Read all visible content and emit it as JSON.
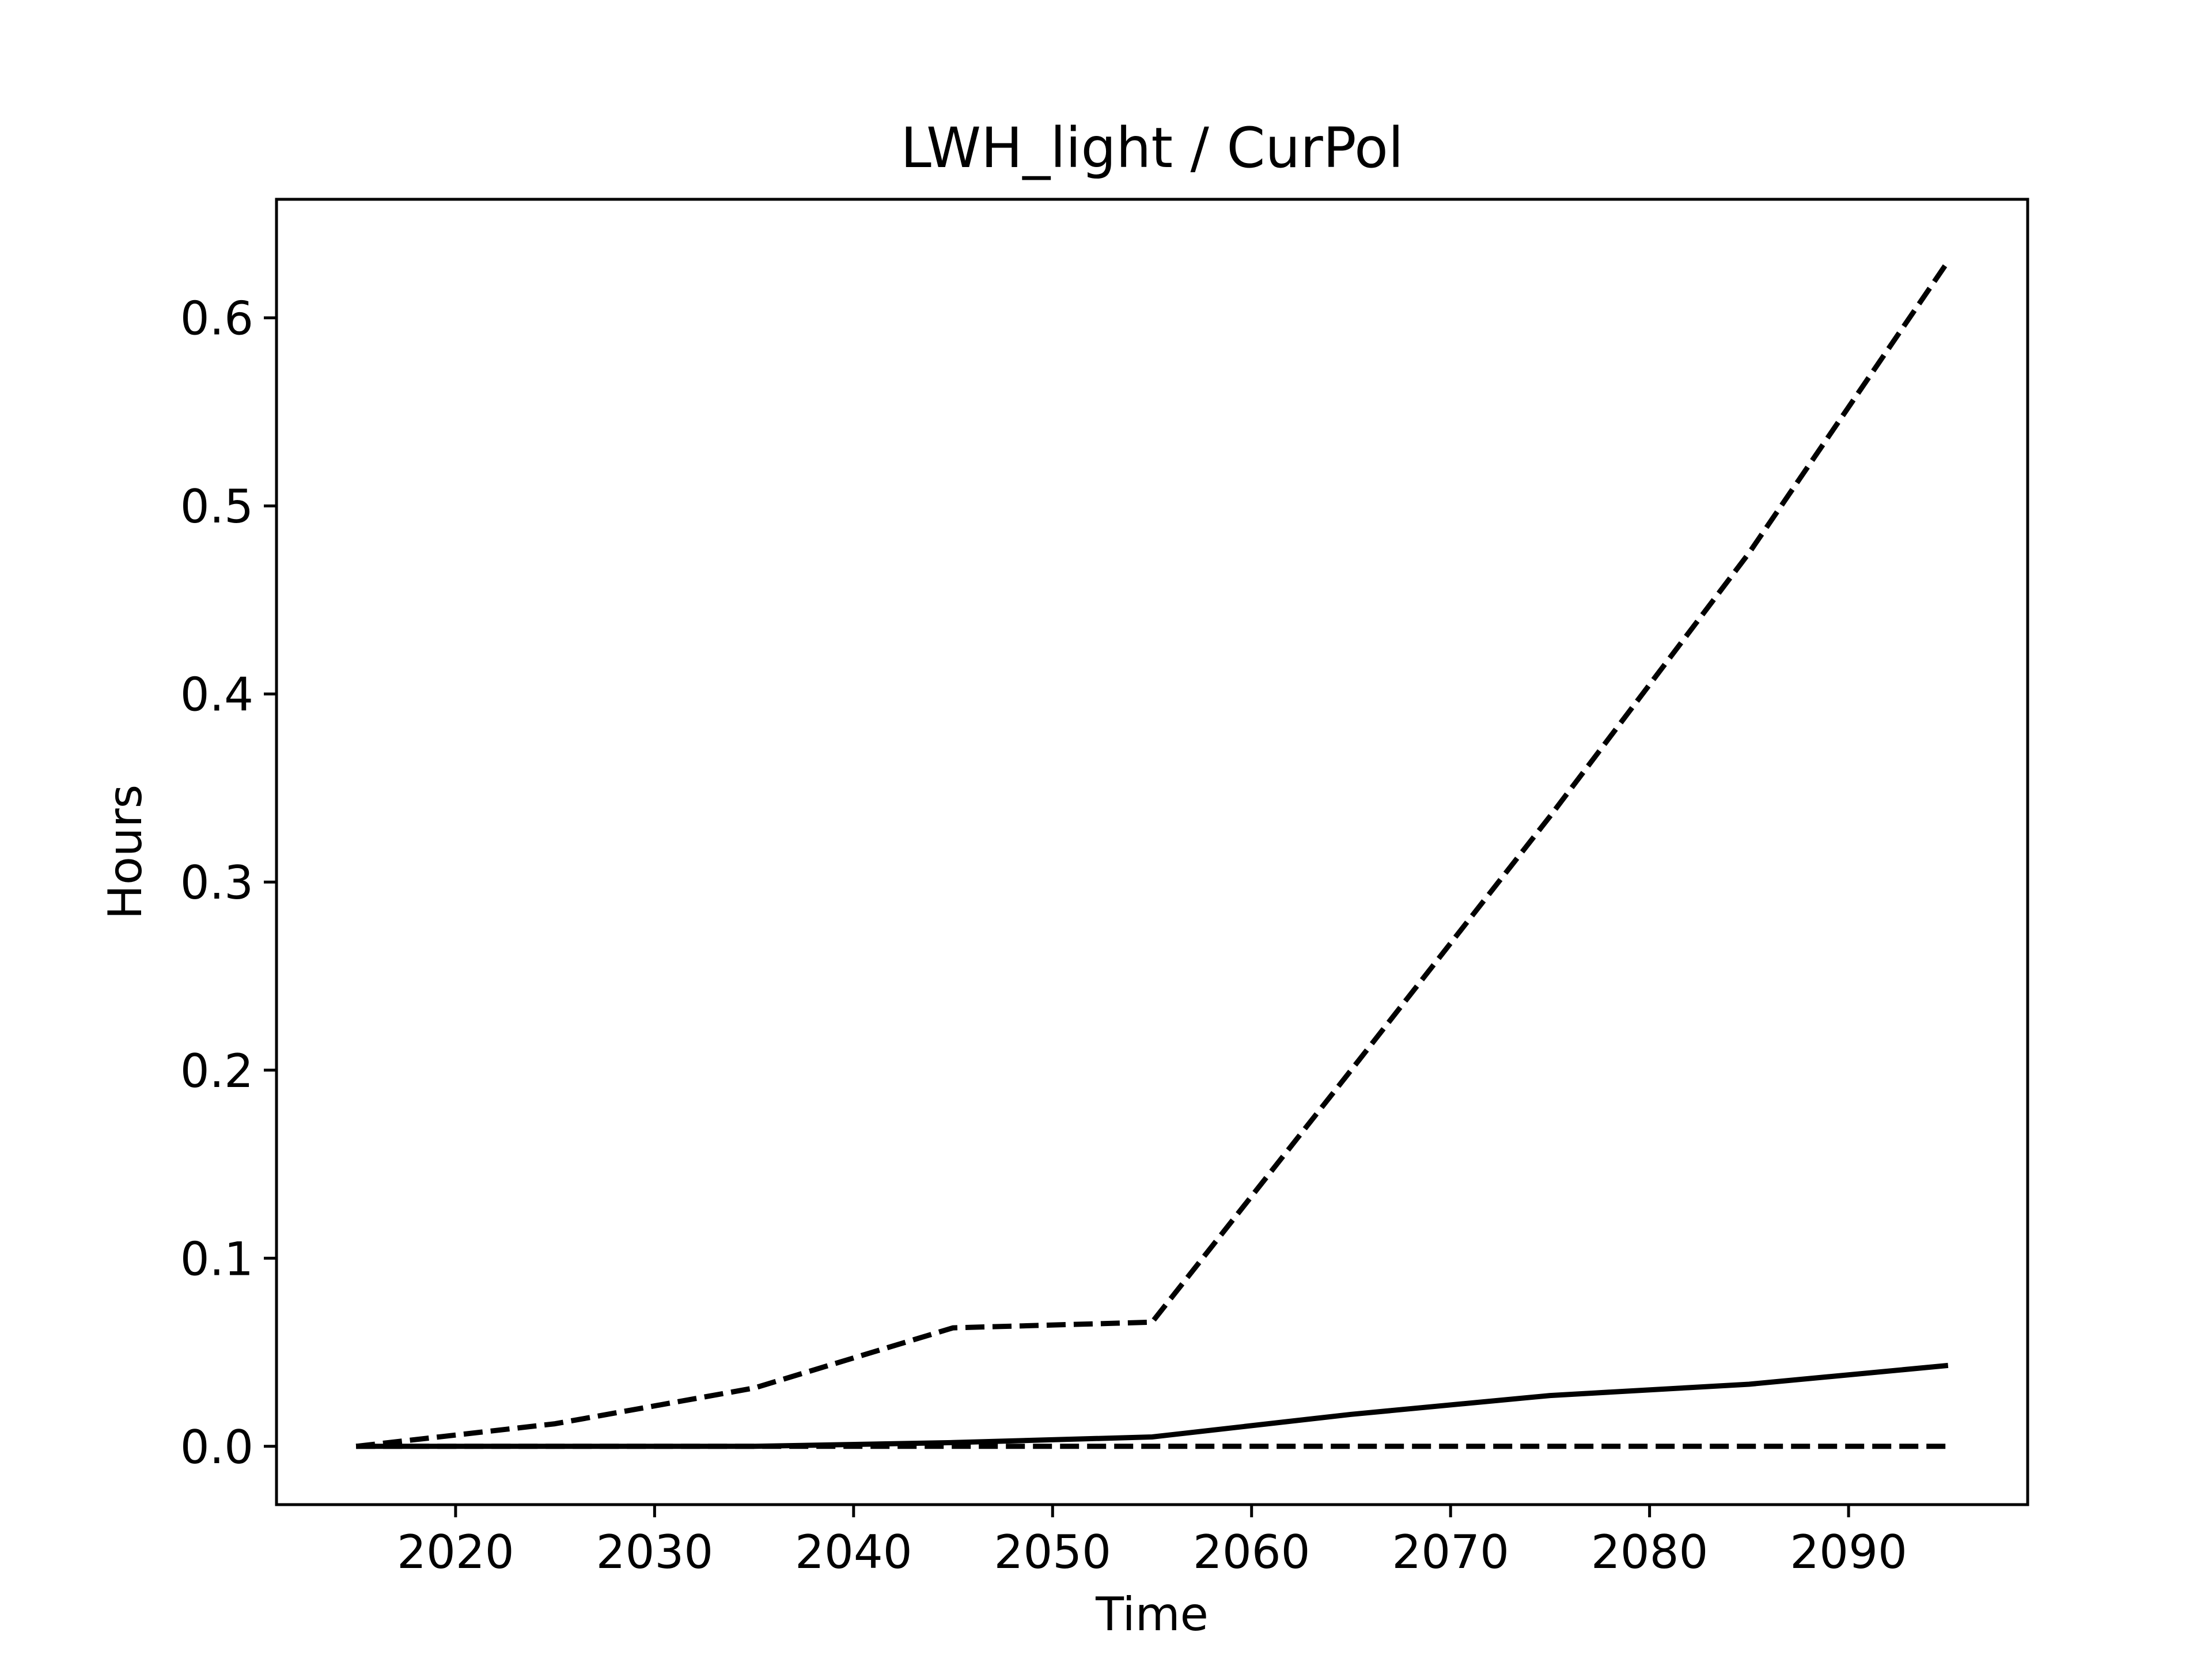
{
  "chart_data": {
    "type": "line",
    "title": "LWH_light / CurPol",
    "xlabel": "Time",
    "ylabel": "Hours",
    "xlim": [
      2011,
      2099
    ],
    "ylim": [
      -0.031,
      0.663
    ],
    "xticks": [
      2020,
      2030,
      2040,
      2050,
      2060,
      2070,
      2080,
      2090
    ],
    "yticks": [
      0.0,
      0.1,
      0.2,
      0.3,
      0.4,
      0.5,
      0.6
    ],
    "ytick_labels": [
      "0.0",
      "0.1",
      "0.2",
      "0.3",
      "0.4",
      "0.5",
      "0.6"
    ],
    "grid": false,
    "legend": false,
    "series": [
      {
        "style": "dashed",
        "color": "#000000",
        "x": [
          2015,
          2025,
          2035,
          2045,
          2055,
          2065,
          2075,
          2085,
          2095
        ],
        "y": [
          0.0,
          0.012,
          0.031,
          0.063,
          0.066,
          0.2,
          0.335,
          0.475,
          0.63
        ]
      },
      {
        "style": "solid",
        "color": "#000000",
        "x": [
          2015,
          2025,
          2035,
          2045,
          2055,
          2065,
          2075,
          2085,
          2095
        ],
        "y": [
          0.0,
          0.0,
          0.0,
          0.002,
          0.005,
          0.017,
          0.027,
          0.033,
          0.043
        ]
      },
      {
        "style": "dashed",
        "color": "#000000",
        "x": [
          2015,
          2025,
          2035,
          2045,
          2055,
          2065,
          2075,
          2085,
          2095
        ],
        "y": [
          0.0,
          0.0,
          0.0,
          0.0,
          0.0,
          0.0,
          0.0,
          0.0,
          0.0
        ]
      }
    ]
  }
}
